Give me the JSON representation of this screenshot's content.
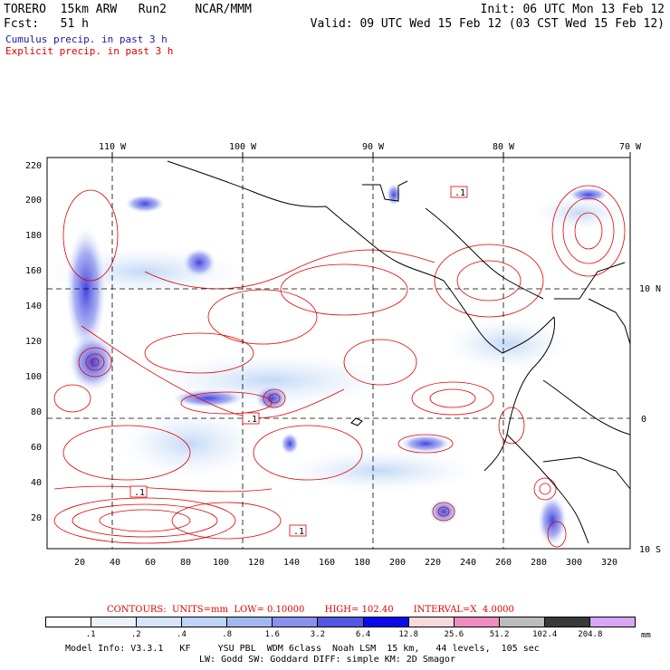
{
  "header": {
    "line1_left": "TORERO  15km ARW   Run2    NCAR/MMM",
    "line1_right": "Init: 06 UTC Mon 13 Feb 12",
    "line2_left": "Fcst:   51 h",
    "line2_right": "Valid: 09 UTC Wed 15 Feb 12 (03 CST Wed 15 Feb 12)",
    "legend_cumulus": "Cumulus precip. in past 3 h",
    "legend_explicit": "Explicit precip. in past 3 h",
    "cumulus_color": "#1a1aa0",
    "explicit_color": "#e00000"
  },
  "map": {
    "top_lon_labels": [
      "110 W",
      "100 W",
      "90 W",
      "80 W",
      "70 W"
    ],
    "right_lat_labels": [
      "10 N",
      "0",
      "10 S"
    ],
    "y_ticks": [
      "220",
      "200",
      "180",
      "160",
      "140",
      "120",
      "100",
      "80",
      "60",
      "40",
      "20"
    ],
    "x_ticks": [
      "20",
      "40",
      "60",
      "80",
      "100",
      "120",
      "140",
      "160",
      "180",
      "200",
      "220",
      "240",
      "260",
      "280",
      "300",
      "320"
    ],
    "contour_labels": [
      ".1",
      ".1",
      ".1",
      ".1"
    ]
  },
  "footer": {
    "contours_line": "CONTOURS:  UNITS=mm  LOW= 0.10000       HIGH= 102.40       INTERVAL=X  4.0000",
    "colorbar_labels": [
      ".1",
      ".2",
      ".4",
      ".8",
      "1.6",
      "3.2",
      "6.4",
      "12.8",
      "25.6",
      "51.2",
      "102.4",
      "204.8"
    ],
    "colorbar_unit": "mm",
    "colorbar_colors": [
      "#ffffff",
      "#ebf2fb",
      "#d6e6fa",
      "#bcd4f5",
      "#a3b8f2",
      "#8891ec",
      "#5656e4",
      "#0a0ae8",
      "#f7d9dc",
      "#f08cc0",
      "#bcbcbc",
      "#3a3a3a",
      "#d7a6f4"
    ],
    "model_info_1": "Model Info: V3.3.1   KF     YSU PBL  WDM 6class  Noah LSM  15 km,   44 levels,  105 sec",
    "model_info_2": "LW: Godd SW: Goddard DIFF: simple KM: 2D Smagor"
  }
}
